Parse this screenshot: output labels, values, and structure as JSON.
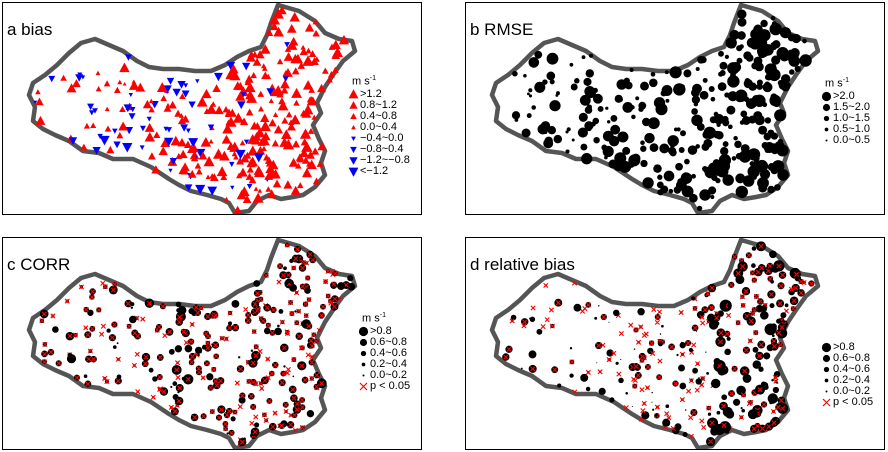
{
  "panels": [
    {
      "id": "a",
      "title": "a bias",
      "unit": "m s",
      "unit_exp": "-1",
      "style": "triangles",
      "legend": [
        {
          "label": ">1.2",
          "color": "#ff0000",
          "marker": "tri-up",
          "size": 1.0
        },
        {
          "label": "0.8~1.2",
          "color": "#ff0000",
          "marker": "tri-up",
          "size": 0.82
        },
        {
          "label": "0.4~0.8",
          "color": "#ff0000",
          "marker": "tri-up",
          "size": 0.64
        },
        {
          "label": "0.0~0.4",
          "color": "#ff0000",
          "marker": "tri-up",
          "size": 0.42
        },
        {
          "label": "−0.4~0.0",
          "color": "#0000ff",
          "marker": "tri-down",
          "size": 0.42
        },
        {
          "label": "−0.8~0.4",
          "color": "#0000ff",
          "marker": "tri-down",
          "size": 0.64
        },
        {
          "label": "−1.2~−0.8",
          "color": "#0000ff",
          "marker": "tri-down",
          "size": 0.82
        },
        {
          "label": "<−1.2",
          "color": "#0000ff",
          "marker": "tri-down",
          "size": 1.0
        }
      ]
    },
    {
      "id": "b",
      "title": "b RMSE",
      "unit": "m s",
      "unit_exp": "-1",
      "style": "dots",
      "legend": [
        {
          "label": ">2.0",
          "color": "#000000",
          "marker": "circle",
          "size": 1.0
        },
        {
          "label": "1.5~2.0",
          "color": "#000000",
          "marker": "circle",
          "size": 0.78
        },
        {
          "label": "1.0~1.5",
          "color": "#000000",
          "marker": "circle",
          "size": 0.58
        },
        {
          "label": "0.5~1.0",
          "color": "#000000",
          "marker": "circle",
          "size": 0.4
        },
        {
          "label": "0.0~0.5",
          "color": "#000000",
          "marker": "circle",
          "size": 0.22
        }
      ]
    },
    {
      "id": "c",
      "title": "c CORR",
      "unit": "m s",
      "unit_exp": "-1",
      "style": "dots-cross",
      "legend": [
        {
          "label": ">0.8",
          "color": "#000000",
          "marker": "circle",
          "size": 1.0
        },
        {
          "label": "0.6~0.8",
          "color": "#000000",
          "marker": "circle",
          "size": 0.78
        },
        {
          "label": "0.4~0.6",
          "color": "#000000",
          "marker": "circle",
          "size": 0.58
        },
        {
          "label": "0.2~0.4",
          "color": "#000000",
          "marker": "circle",
          "size": 0.4
        },
        {
          "label": "0.0~0.2",
          "color": "#000000",
          "marker": "circle",
          "size": 0.22
        },
        {
          "label": "p < 0.05",
          "color": "#ff0000",
          "marker": "cross",
          "size": 0.7
        }
      ]
    },
    {
      "id": "d",
      "title": "d relative bias",
      "unit": "",
      "unit_exp": "",
      "style": "dots-cross",
      "legend": [
        {
          "label": ">0.8",
          "color": "#000000",
          "marker": "circle",
          "size": 1.0
        },
        {
          "label": "0.6~0.8",
          "color": "#000000",
          "marker": "circle",
          "size": 0.78
        },
        {
          "label": "0.4~0.6",
          "color": "#000000",
          "marker": "circle",
          "size": 0.58
        },
        {
          "label": "0.2~0.4",
          "color": "#000000",
          "marker": "circle",
          "size": 0.4
        },
        {
          "label": "0.0~0.2",
          "color": "#000000",
          "marker": "circle",
          "size": 0.22
        },
        {
          "label": "p < 0.05",
          "color": "#ff0000",
          "marker": "cross",
          "size": 0.7
        }
      ]
    }
  ],
  "colors": {
    "outline": "#555555",
    "positive": "#ff0000",
    "negative": "#0000ff",
    "dot": "#000000",
    "cross": "#ff0000"
  }
}
